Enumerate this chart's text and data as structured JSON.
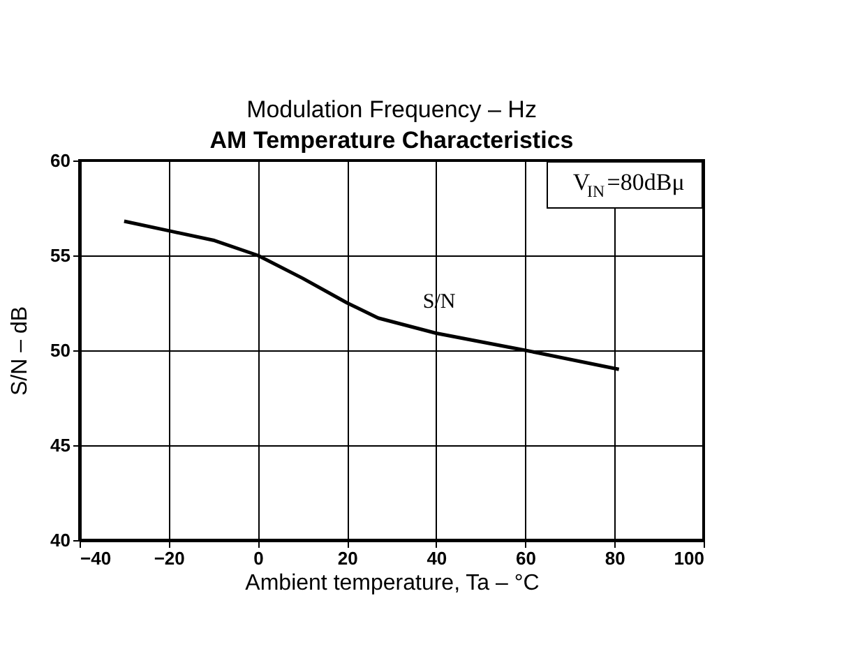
{
  "chart_data": {
    "type": "line",
    "title": "AM Temperature Characteristics",
    "xlabel": "Ambient temperature, Ta – °C",
    "ylabel": "S/N – dB",
    "x": [
      -30,
      -20,
      -10,
      0,
      10,
      20,
      27,
      40,
      60,
      81
    ],
    "series": [
      {
        "color": "#000000",
        "values": [
          56.8,
          56.3,
          55.8,
          55.0,
          53.8,
          52.5,
          51.7,
          50.9,
          50.0,
          49.0
        ]
      }
    ],
    "xlim": [
      -40,
      100
    ],
    "xticks": [
      -40,
      -20,
      0,
      20,
      40,
      60,
      80,
      100
    ],
    "ylim": [
      40,
      60
    ],
    "yticks": [
      40,
      45,
      50,
      55,
      60
    ],
    "grid": true,
    "marker": "none",
    "line_style": "solid",
    "annotations": [
      "Modulation Frequency – Hz",
      "V$_{IN}$=80dBμ",
      "S/N"
    ]
  }
}
